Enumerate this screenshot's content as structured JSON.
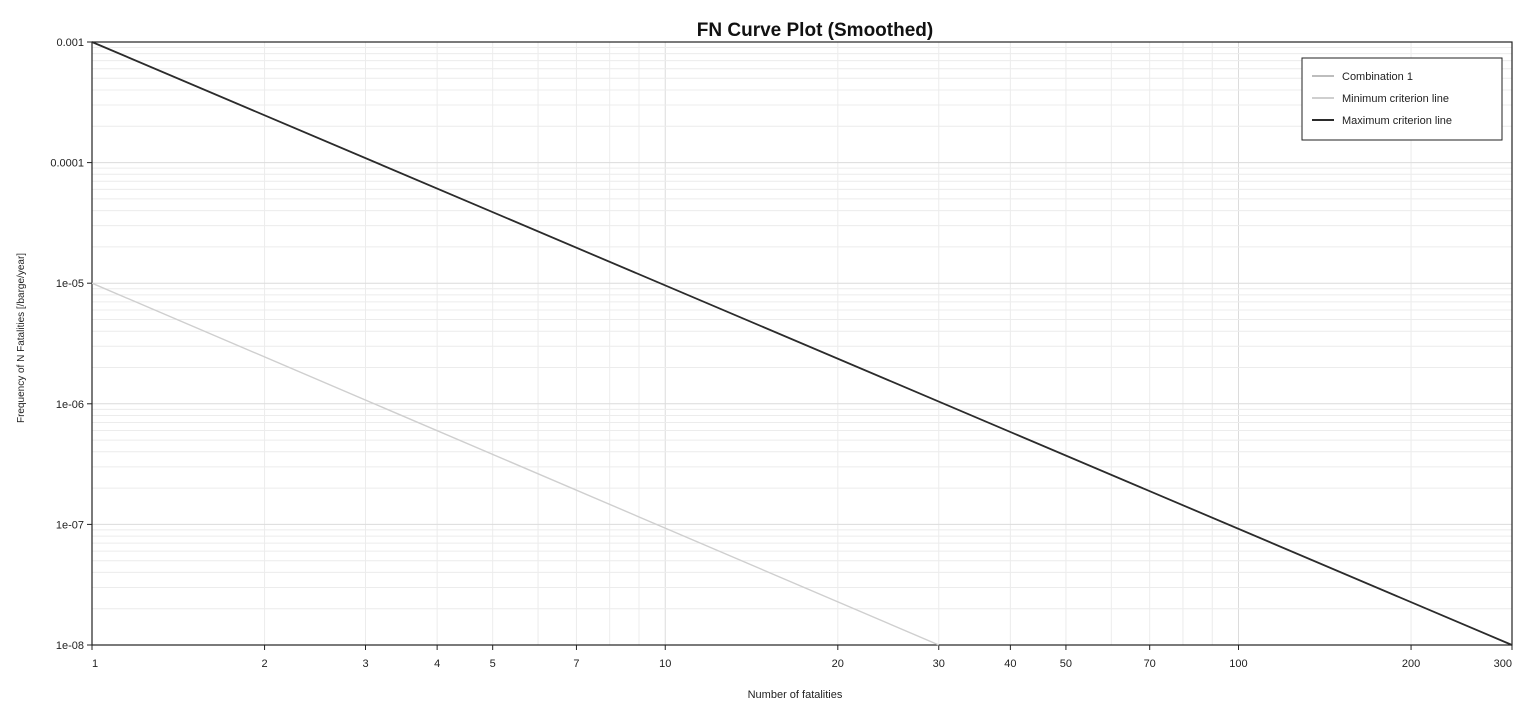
{
  "chart_data": {
    "type": "line",
    "title": "FN Curve Plot (Smoothed)",
    "xlabel": "Number of fatalities",
    "ylabel": "Frequency of N Fatalities [/barge/year]",
    "x_scale": "log",
    "y_scale": "log",
    "xlim": [
      1,
      300
    ],
    "ylim": [
      1e-08,
      0.001
    ],
    "x_ticks": [
      1,
      2,
      3,
      4,
      5,
      7,
      10,
      20,
      30,
      40,
      50,
      70,
      100,
      200,
      300
    ],
    "x_tick_labels": [
      "1",
      "2",
      "3",
      "4",
      "5",
      "7",
      "10",
      "20",
      "30",
      "40",
      "50",
      "70",
      "100",
      "200",
      "300"
    ],
    "y_ticks": [
      1e-08,
      1e-07,
      1e-06,
      1e-05,
      0.0001,
      0.001
    ],
    "y_tick_labels": [
      "1e-08",
      "1e-07",
      "1e-06",
      "1e-05",
      "0.0001",
      "0.001"
    ],
    "grid": true,
    "legend_position": "top-right",
    "series": [
      {
        "name": "Combination 1",
        "color": "#bdbdbd",
        "x": [],
        "y": []
      },
      {
        "name": "Minimum criterion line",
        "color": "#cfcfcf",
        "x": [
          1,
          30
        ],
        "y": [
          1e-05,
          1e-08
        ]
      },
      {
        "name": "Maximum criterion line",
        "color": "#2b2b2b",
        "x": [
          1,
          300
        ],
        "y": [
          0.001,
          1e-08
        ]
      }
    ]
  }
}
